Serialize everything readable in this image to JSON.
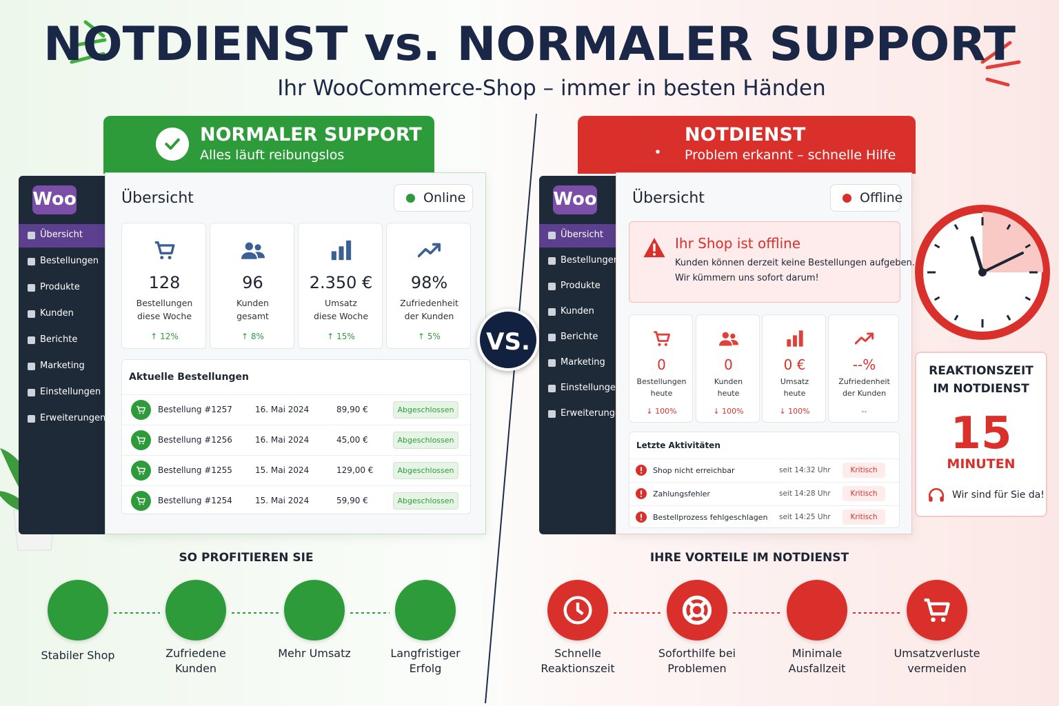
{
  "header": {
    "title": "NOTDIENST vs. NORMALER SUPPORT",
    "subtitle": "Ihr WooCommerce-Shop – immer in besten Händen"
  },
  "vs": "VS.",
  "left": {
    "banner": {
      "title": "NORMALER SUPPORT",
      "subtitle": "Alles läuft reibungslos"
    },
    "sidebar": {
      "logo": "Woo",
      "items": [
        "Übersicht",
        "Bestellungen",
        "Produkte",
        "Kunden",
        "Berichte",
        "Marketing",
        "Einstellungen",
        "Erweiterungen"
      ]
    },
    "panel": {
      "title": "Übersicht",
      "status": "Online"
    },
    "stats": [
      {
        "value": 128,
        "label": [
          "Bestellungen",
          "diese Woche"
        ],
        "change": "↑ 12%"
      },
      {
        "value": 96,
        "label": [
          "Kunden",
          "gesamt"
        ],
        "change": "↑ 8%"
      },
      {
        "value": "2.350 €",
        "label": [
          "Umsatz",
          "diese Woche"
        ],
        "change": "↑ 15%"
      },
      {
        "value": "98%",
        "label": [
          "Zufriedenheit",
          "der Kunden"
        ],
        "change": "↑ 5%"
      }
    ],
    "list": {
      "title": "Aktuelle Bestellungen",
      "rows": [
        [
          "Bestellung #1257",
          "16. Mai 2024",
          "89,90 €",
          "Abgeschlossen"
        ],
        [
          "Bestellung #1256",
          "16. Mai 2024",
          "45,00 €",
          "Abgeschlossen"
        ],
        [
          "Bestellung #1255",
          "15. Mai 2024",
          "129,00 €",
          "Abgeschlossen"
        ],
        [
          "Bestellung #1254",
          "15. Mai 2024",
          "59,90 €",
          "Abgeschlossen"
        ]
      ]
    },
    "benefits": {
      "title": "SO PROFITIEREN SIE",
      "items": [
        [
          "Stabiler Shop"
        ],
        [
          "Zufriedene",
          "Kunden"
        ],
        [
          "Mehr Umsatz"
        ],
        [
          "Langfristiger",
          "Erfolg"
        ]
      ]
    }
  },
  "right": {
    "banner": {
      "title": "NOTDIENST",
      "subtitle": "Problem erkannt – schnelle Hilfe"
    },
    "sidebar": {
      "logo": "Woo",
      "items": [
        "Übersicht",
        "Bestellungen",
        "Produkte",
        "Kunden",
        "Berichte",
        "Marketing",
        "Einstellungen",
        "Erweiterungen"
      ]
    },
    "panel": {
      "title": "Übersicht",
      "status": "Offline"
    },
    "alert": {
      "title": "Ihr Shop ist offline",
      "lines": [
        "Kunden können derzeit keine Bestellungen aufgeben.",
        "Wir kümmern uns sofort darum!"
      ]
    },
    "stats": [
      {
        "value": 0,
        "label": [
          "Bestellungen",
          "heute"
        ],
        "change": "↓ 100%"
      },
      {
        "value": 0,
        "label": [
          "Kunden",
          "heute"
        ],
        "change": "↓ 100%"
      },
      {
        "value": "0 €",
        "label": [
          "Umsatz",
          "heute"
        ],
        "change": "↓ 100%"
      },
      {
        "value": "--%",
        "label": [
          "Zufriedenheit",
          "der Kunden"
        ],
        "change": "--"
      }
    ],
    "list": {
      "title": "Letzte Aktivitäten",
      "rows": [
        [
          "Shop nicht erreichbar",
          "seit 14:32 Uhr",
          "Kritisch"
        ],
        [
          "Zahlungsfehler",
          "seit 14:28 Uhr",
          "Kritisch"
        ],
        [
          "Bestellprozess fehlgeschlagen",
          "seit 14:25 Uhr",
          "Kritisch"
        ]
      ]
    },
    "benefits": {
      "title": "IHRE VORTEILE IM NOTDIENST",
      "items": [
        [
          "Schnelle",
          "Reaktionszeit"
        ],
        [
          "Soforthilfe bei",
          "Problemen"
        ],
        [
          "Minimale",
          "Ausfallzeit"
        ],
        [
          "Umsatzverluste",
          "vermeiden"
        ]
      ]
    }
  },
  "reaction": {
    "title": [
      "REAKTIONSZEIT",
      "IM NOTDIENST"
    ],
    "value": 15,
    "unit": "MINUTEN",
    "note": "Wir sind für Sie da!"
  }
}
